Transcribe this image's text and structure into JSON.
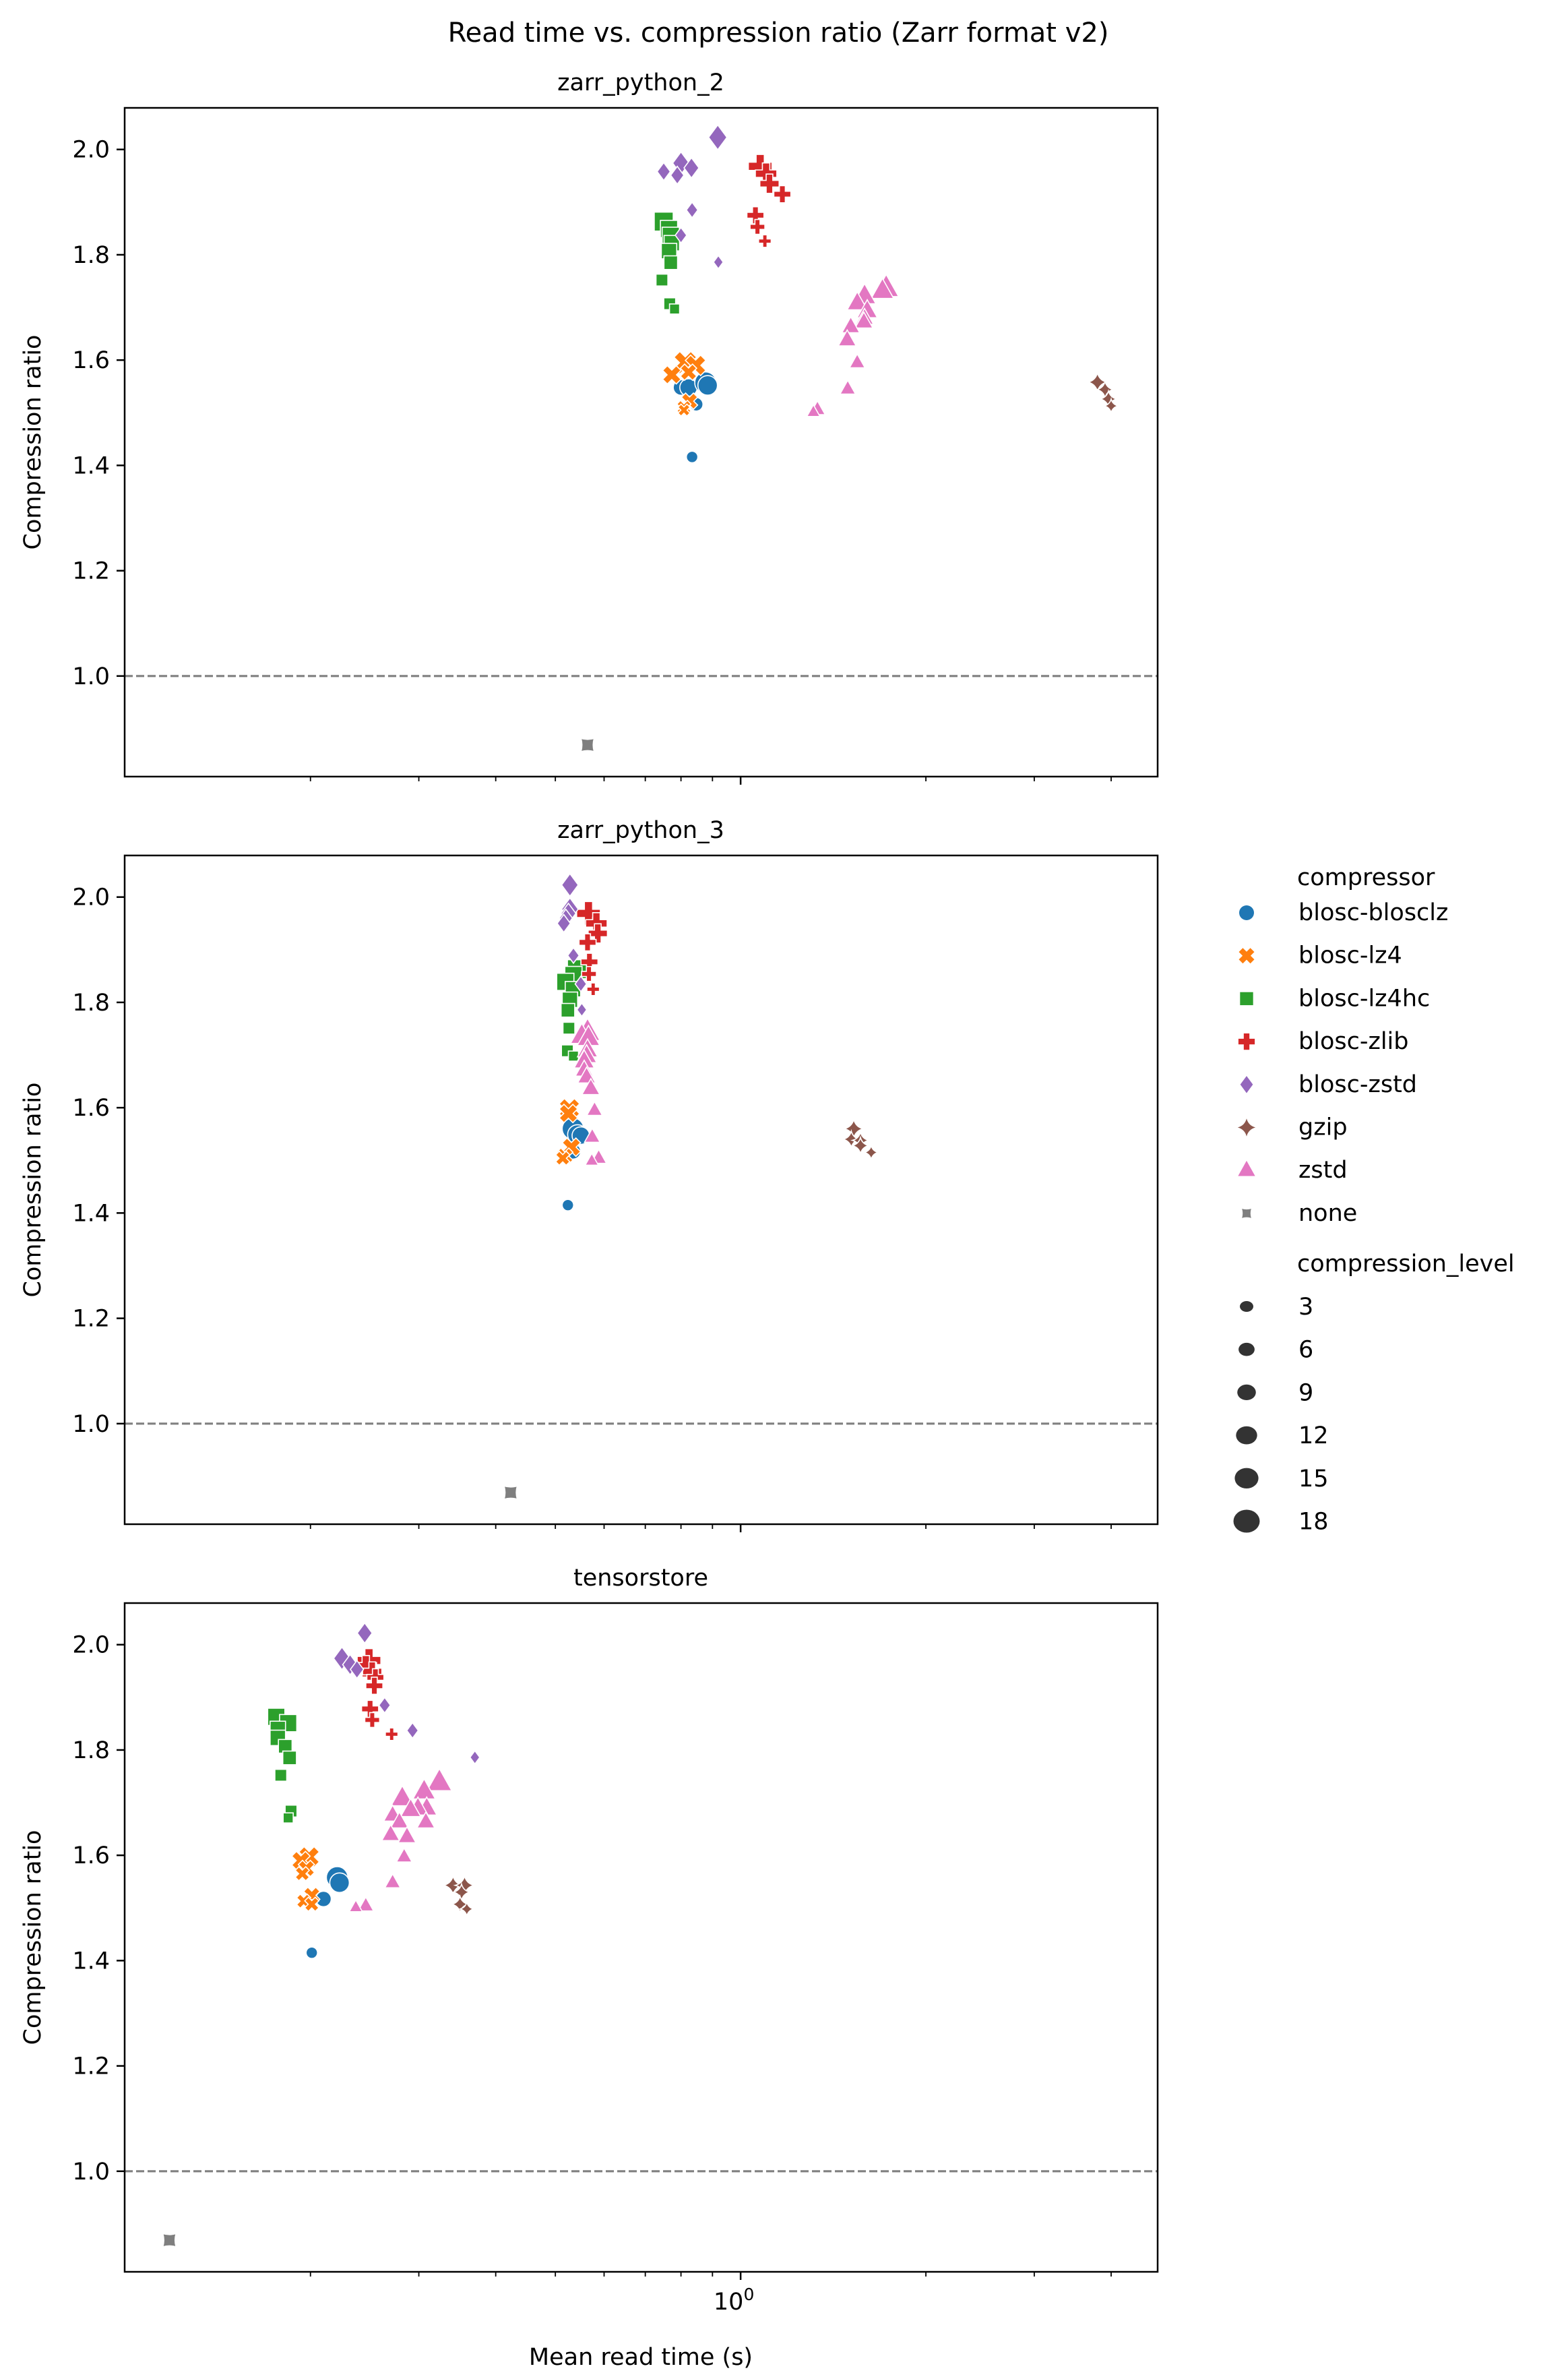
{
  "chart_data": {
    "type": "scatter",
    "title": "Read time vs. compression ratio (Zarr format v2)",
    "xlabel": "Mean read time (s)",
    "ylabel": "Compression ratio",
    "xscale": "log",
    "xlim": [
      0.0998,
      4.76
    ],
    "ylim": [
      0.809,
      2.079
    ],
    "x_major_ticks": [
      {
        "value": 1,
        "label": "10^0"
      }
    ],
    "x_minor_ticks": [
      0.2,
      0.3,
      0.4,
      0.5,
      0.6,
      0.7,
      0.8,
      0.9,
      2,
      3,
      4
    ],
    "y_ticks": [
      1.0,
      1.2,
      1.4,
      1.6,
      1.8,
      2.0
    ],
    "y_tick_labels": [
      "1.0",
      "1.2",
      "1.4",
      "1.6",
      "1.8",
      "2.0"
    ],
    "reference_line": {
      "y": 1.0,
      "style": "dashed",
      "color": "#808080"
    },
    "grid": false,
    "legend": {
      "placement": "right",
      "hue_title": "compressor",
      "size_title": "compression_level",
      "compressors": [
        {
          "name": "blosc-blosclz",
          "color": "#1f77b4",
          "marker": "circle"
        },
        {
          "name": "blosc-lz4",
          "color": "#ff7f0e",
          "marker": "x"
        },
        {
          "name": "blosc-lz4hc",
          "color": "#2ca02c",
          "marker": "square"
        },
        {
          "name": "blosc-zlib",
          "color": "#d62728",
          "marker": "plus"
        },
        {
          "name": "blosc-zstd",
          "color": "#9467bd",
          "marker": "diamond"
        },
        {
          "name": "gzip",
          "color": "#8c564b",
          "marker": "star4"
        },
        {
          "name": "zstd",
          "color": "#e377c2",
          "marker": "triangle"
        },
        {
          "name": "none",
          "color": "#7f7f7f",
          "marker": "star4wide"
        }
      ],
      "levels": [
        3,
        6,
        9,
        12,
        15,
        18
      ],
      "level_color": "#333333"
    },
    "panels": [
      {
        "title": "zarr_python_2",
        "series": {
          "blosc-blosclz": [
            [
              0.8,
              1.548,
              9
            ],
            [
              0.823,
              1.548,
              12
            ],
            [
              0.877,
              1.557,
              18
            ],
            [
              0.884,
              1.552,
              15
            ],
            [
              0.847,
              1.516,
              6
            ],
            [
              0.834,
              1.416,
              3
            ]
          ],
          "blosc-lz4": [
            [
              0.813,
              1.595,
              18
            ],
            [
              0.845,
              1.59,
              15
            ],
            [
              0.773,
              1.572,
              12
            ],
            [
              0.823,
              1.577,
              9
            ],
            [
              0.826,
              1.522,
              9
            ],
            [
              0.809,
              1.51,
              6
            ],
            [
              0.809,
              1.505,
              3
            ]
          ],
          "blosc-lz4hc": [
            [
              0.75,
              1.863,
              18
            ],
            [
              0.765,
              1.849,
              15
            ],
            [
              0.77,
              1.836,
              15
            ],
            [
              0.773,
              1.822,
              12
            ],
            [
              0.765,
              1.807,
              12
            ],
            [
              0.77,
              1.785,
              9
            ],
            [
              0.745,
              1.752,
              6
            ],
            [
              0.767,
              1.707,
              6
            ],
            [
              0.781,
              1.697,
              3
            ]
          ],
          "blosc-zlib": [
            [
              1.076,
              1.968,
              18
            ],
            [
              1.1,
              1.954,
              15
            ],
            [
              1.114,
              1.935,
              12
            ],
            [
              1.169,
              1.915,
              9
            ],
            [
              1.057,
              1.875,
              9
            ],
            [
              1.065,
              1.853,
              6
            ],
            [
              1.095,
              1.826,
              3
            ]
          ],
          "blosc-zstd": [
            [
              0.918,
              2.023,
              18
            ],
            [
              0.8,
              1.974,
              15
            ],
            [
              0.832,
              1.965,
              12
            ],
            [
              0.75,
              1.958,
              9
            ],
            [
              0.789,
              1.951,
              9
            ],
            [
              0.834,
              1.885,
              6
            ],
            [
              0.8,
              1.837,
              6
            ],
            [
              0.92,
              1.786,
              3
            ]
          ],
          "gzip": [
            [
              3.8,
              1.558,
              9
            ],
            [
              3.91,
              1.544,
              6
            ],
            [
              3.96,
              1.526,
              6
            ],
            [
              4.0,
              1.513,
              3
            ]
          ],
          "zstd": [
            [
              1.724,
              1.736,
              18
            ],
            [
              1.7,
              1.731,
              15
            ],
            [
              1.59,
              1.721,
              15
            ],
            [
              1.547,
              1.708,
              12
            ],
            [
              1.606,
              1.693,
              12
            ],
            [
              1.59,
              1.679,
              9
            ],
            [
              1.586,
              1.672,
              9
            ],
            [
              1.51,
              1.663,
              9
            ],
            [
              1.49,
              1.638,
              9
            ],
            [
              1.547,
              1.595,
              6
            ],
            [
              1.493,
              1.545,
              6
            ],
            [
              1.333,
              1.506,
              6
            ],
            [
              1.313,
              1.501,
              3
            ]
          ],
          "none": [
            [
              0.564,
              0.869,
              9
            ]
          ]
        }
      },
      {
        "title": "zarr_python_3",
        "series": {
          "blosc-blosclz": [
            [
              0.534,
              1.56,
              18
            ],
            [
              0.543,
              1.549,
              15
            ],
            [
              0.55,
              1.547,
              12
            ],
            [
              0.534,
              1.517,
              9
            ],
            [
              0.524,
              1.415,
              3
            ]
          ],
          "blosc-lz4": [
            [
              0.527,
              1.598,
              15
            ],
            [
              0.525,
              1.589,
              12
            ],
            [
              0.531,
              1.525,
              12
            ],
            [
              0.518,
              1.508,
              9
            ],
            [
              0.514,
              1.504,
              6
            ]
          ],
          "blosc-lz4hc": [
            [
              0.542,
              1.863,
              18
            ],
            [
              0.535,
              1.852,
              15
            ],
            [
              0.519,
              1.839,
              15
            ],
            [
              0.534,
              1.825,
              12
            ],
            [
              0.528,
              1.805,
              12
            ],
            [
              0.524,
              1.785,
              9
            ],
            [
              0.526,
              1.751,
              6
            ],
            [
              0.523,
              1.708,
              6
            ],
            [
              0.535,
              1.698,
              3
            ]
          ],
          "blosc-zlib": [
            [
              0.566,
              1.969,
              18
            ],
            [
              0.583,
              1.95,
              15
            ],
            [
              0.586,
              1.931,
              12
            ],
            [
              0.564,
              1.914,
              9
            ],
            [
              0.568,
              1.877,
              9
            ],
            [
              0.567,
              1.854,
              6
            ],
            [
              0.576,
              1.825,
              3
            ]
          ],
          "blosc-zstd": [
            [
              0.528,
              2.023,
              15
            ],
            [
              0.528,
              1.977,
              15
            ],
            [
              0.525,
              1.969,
              12
            ],
            [
              0.52,
              1.96,
              9
            ],
            [
              0.516,
              1.95,
              9
            ],
            [
              0.535,
              1.889,
              6
            ],
            [
              0.55,
              1.835,
              6
            ],
            [
              0.552,
              1.786,
              3
            ]
          ],
          "gzip": [
            [
              1.527,
              1.56,
              9
            ],
            [
              1.513,
              1.54,
              6
            ],
            [
              1.566,
              1.538,
              6
            ],
            [
              1.566,
              1.528,
              6
            ],
            [
              1.63,
              1.515,
              3
            ]
          ],
          "zstd": [
            [
              0.564,
              1.743,
              18
            ],
            [
              0.552,
              1.736,
              15
            ],
            [
              0.566,
              1.732,
              15
            ],
            [
              0.564,
              1.709,
              12
            ],
            [
              0.562,
              1.698,
              12
            ],
            [
              0.557,
              1.688,
              12
            ],
            [
              0.557,
              1.671,
              9
            ],
            [
              0.562,
              1.658,
              9
            ],
            [
              0.571,
              1.636,
              9
            ],
            [
              0.579,
              1.595,
              6
            ],
            [
              0.574,
              1.544,
              6
            ],
            [
              0.588,
              1.504,
              6
            ],
            [
              0.573,
              1.499,
              3
            ]
          ],
          "none": [
            [
              0.423,
              0.869,
              9
            ]
          ]
        }
      },
      {
        "title": "tensorstore",
        "series": {
          "blosc-blosclz": [
            [
              0.221,
              1.558,
              18
            ],
            [
              0.223,
              1.548,
              15
            ],
            [
              0.21,
              1.517,
              9
            ],
            [
              0.201,
              1.415,
              3
            ]
          ],
          "blosc-lz4": [
            [
              0.199,
              1.597,
              15
            ],
            [
              0.193,
              1.59,
              12
            ],
            [
              0.197,
              1.575,
              9
            ],
            [
              0.194,
              1.565,
              6
            ],
            [
              0.201,
              1.524,
              9
            ],
            [
              0.195,
              1.513,
              6
            ],
            [
              0.201,
              1.507,
              6
            ]
          ],
          "blosc-lz4hc": [
            [
              0.176,
              1.863,
              15
            ],
            [
              0.184,
              1.851,
              15
            ],
            [
              0.177,
              1.84,
              12
            ],
            [
              0.177,
              1.823,
              12
            ],
            [
              0.182,
              1.807,
              9
            ],
            [
              0.185,
              1.785,
              9
            ],
            [
              0.179,
              1.752,
              6
            ],
            [
              0.186,
              1.684,
              6
            ],
            [
              0.184,
              1.671,
              3
            ]
          ],
          "blosc-zlib": [
            [
              0.249,
              1.97,
              18
            ],
            [
              0.246,
              1.959,
              15
            ],
            [
              0.252,
              1.949,
              12
            ],
            [
              0.255,
              1.938,
              9
            ],
            [
              0.254,
              1.922,
              9
            ],
            [
              0.25,
              1.878,
              9
            ],
            [
              0.252,
              1.857,
              6
            ],
            [
              0.271,
              1.83,
              3
            ]
          ],
          "blosc-zstd": [
            [
              0.245,
              2.022,
              12
            ],
            [
              0.225,
              1.974,
              15
            ],
            [
              0.232,
              1.962,
              12
            ],
            [
              0.238,
              1.953,
              9
            ],
            [
              0.264,
              1.885,
              6
            ],
            [
              0.293,
              1.837,
              6
            ],
            [
              0.37,
              1.786,
              3
            ]
          ],
          "gzip": [
            [
              0.341,
              1.543,
              9
            ],
            [
              0.356,
              1.543,
              9
            ],
            [
              0.352,
              1.53,
              6
            ],
            [
              0.35,
              1.507,
              6
            ],
            [
              0.359,
              1.498,
              3
            ]
          ],
          "zstd": [
            [
              0.324,
              1.738,
              18
            ],
            [
              0.306,
              1.721,
              15
            ],
            [
              0.282,
              1.708,
              15
            ],
            [
              0.309,
              1.689,
              12
            ],
            [
              0.299,
              1.689,
              12
            ],
            [
              0.291,
              1.686,
              12
            ],
            [
              0.272,
              1.676,
              9
            ],
            [
              0.279,
              1.663,
              9
            ],
            [
              0.308,
              1.663,
              9
            ],
            [
              0.27,
              1.639,
              9
            ],
            [
              0.287,
              1.635,
              9
            ],
            [
              0.284,
              1.597,
              6
            ],
            [
              0.272,
              1.548,
              6
            ],
            [
              0.246,
              1.504,
              6
            ],
            [
              0.237,
              1.501,
              3
            ]
          ],
          "none": [
            [
              0.118,
              0.869,
              9
            ]
          ]
        }
      }
    ]
  }
}
